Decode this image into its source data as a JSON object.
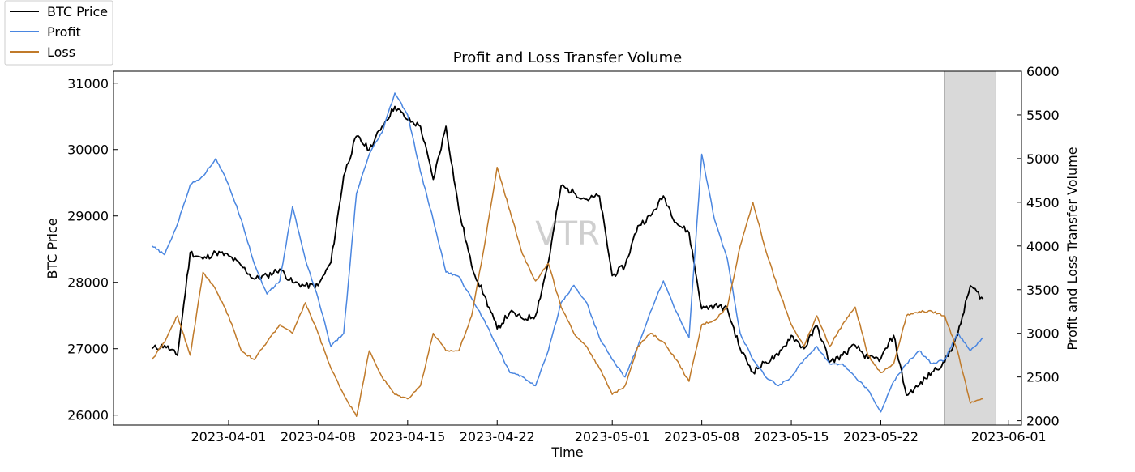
{
  "chart_data": {
    "type": "line",
    "title": "Profit and Loss Transfer Volume",
    "xlabel": "Time",
    "ylabel": "BTC Price",
    "y2label": "Profit and Loss Transfer Volume",
    "watermark": "VTR",
    "xlim": [
      "2023-03-23",
      "2023-06-02"
    ],
    "ylim": [
      25850,
      31180
    ],
    "y2lim": [
      1950,
      6000
    ],
    "x_ticks": [
      "2023-04-01",
      "2023-04-08",
      "2023-04-15",
      "2023-04-22",
      "2023-05-01",
      "2023-05-08",
      "2023-05-15",
      "2023-05-22",
      "2023-06-01"
    ],
    "y_ticks": [
      "26000",
      "27000",
      "28000",
      "29000",
      "30000",
      "31000"
    ],
    "y2_ticks": [
      "2000",
      "2500",
      "3000",
      "3500",
      "4000",
      "4500",
      "5000",
      "5500",
      "6000"
    ],
    "shaded_region": {
      "start": "2023-05-27",
      "end": "2023-05-31",
      "color": "#d9d9d9"
    },
    "legend_position": "top-left",
    "series": [
      {
        "name": "BTC Price",
        "axis": "left",
        "color": "#000000",
        "points": [
          [
            "2023-03-26",
            27000
          ],
          [
            "2023-03-27",
            27050
          ],
          [
            "2023-03-28",
            26900
          ],
          [
            "2023-03-29",
            28450
          ],
          [
            "2023-03-30",
            28350
          ],
          [
            "2023-03-31",
            28450
          ],
          [
            "2023-04-01",
            28400
          ],
          [
            "2023-04-02",
            28250
          ],
          [
            "2023-04-03",
            28050
          ],
          [
            "2023-04-04",
            28100
          ],
          [
            "2023-04-05",
            28200
          ],
          [
            "2023-04-06",
            28000
          ],
          [
            "2023-04-07",
            27950
          ],
          [
            "2023-04-08",
            27950
          ],
          [
            "2023-04-09",
            28300
          ],
          [
            "2023-04-10",
            29600
          ],
          [
            "2023-04-11",
            30200
          ],
          [
            "2023-04-12",
            30000
          ],
          [
            "2023-04-13",
            30350
          ],
          [
            "2023-04-14",
            30650
          ],
          [
            "2023-04-15",
            30450
          ],
          [
            "2023-04-16",
            30350
          ],
          [
            "2023-04-17",
            29550
          ],
          [
            "2023-04-18",
            30350
          ],
          [
            "2023-04-19",
            29100
          ],
          [
            "2023-04-20",
            28250
          ],
          [
            "2023-04-21",
            27800
          ],
          [
            "2023-04-22",
            27300
          ],
          [
            "2023-04-23",
            27550
          ],
          [
            "2023-04-24",
            27450
          ],
          [
            "2023-04-25",
            27500
          ],
          [
            "2023-04-26",
            28300
          ],
          [
            "2023-04-27",
            29450
          ],
          [
            "2023-04-28",
            29350
          ],
          [
            "2023-04-29",
            29250
          ],
          [
            "2023-04-30",
            29300
          ],
          [
            "2023-05-01",
            28100
          ],
          [
            "2023-05-02",
            28250
          ],
          [
            "2023-05-03",
            28850
          ],
          [
            "2023-05-04",
            29000
          ],
          [
            "2023-05-05",
            29300
          ],
          [
            "2023-05-06",
            28900
          ],
          [
            "2023-05-07",
            28750
          ],
          [
            "2023-05-08",
            27600
          ],
          [
            "2023-05-09",
            27650
          ],
          [
            "2023-05-10",
            27600
          ],
          [
            "2023-05-11",
            27000
          ],
          [
            "2023-05-12",
            26650
          ],
          [
            "2023-05-13",
            26800
          ],
          [
            "2023-05-14",
            26900
          ],
          [
            "2023-05-15",
            27200
          ],
          [
            "2023-05-16",
            27000
          ],
          [
            "2023-05-17",
            27350
          ],
          [
            "2023-05-18",
            26800
          ],
          [
            "2023-05-19",
            26900
          ],
          [
            "2023-05-20",
            27050
          ],
          [
            "2023-05-21",
            26850
          ],
          [
            "2023-05-22",
            26850
          ],
          [
            "2023-05-23",
            27200
          ],
          [
            "2023-05-24",
            26300
          ],
          [
            "2023-05-25",
            26450
          ],
          [
            "2023-05-26",
            26650
          ],
          [
            "2023-05-27",
            26800
          ],
          [
            "2023-05-28",
            27200
          ],
          [
            "2023-05-29",
            27950
          ],
          [
            "2023-05-30",
            27750
          ]
        ]
      },
      {
        "name": "Profit",
        "axis": "right",
        "color": "#4a86e0",
        "points": [
          [
            "2023-03-26",
            4000
          ],
          [
            "2023-03-27",
            3900
          ],
          [
            "2023-03-28",
            4250
          ],
          [
            "2023-03-29",
            4700
          ],
          [
            "2023-03-30",
            4800
          ],
          [
            "2023-03-31",
            5000
          ],
          [
            "2023-04-01",
            4700
          ],
          [
            "2023-04-02",
            4300
          ],
          [
            "2023-04-03",
            3800
          ],
          [
            "2023-04-04",
            3450
          ],
          [
            "2023-04-05",
            3600
          ],
          [
            "2023-04-06",
            4450
          ],
          [
            "2023-04-07",
            3850
          ],
          [
            "2023-04-08",
            3400
          ],
          [
            "2023-04-09",
            2850
          ],
          [
            "2023-04-10",
            3000
          ],
          [
            "2023-04-11",
            4600
          ],
          [
            "2023-04-12",
            5050
          ],
          [
            "2023-04-13",
            5300
          ],
          [
            "2023-04-14",
            5750
          ],
          [
            "2023-04-15",
            5500
          ],
          [
            "2023-04-16",
            4850
          ],
          [
            "2023-04-17",
            4300
          ],
          [
            "2023-04-18",
            3700
          ],
          [
            "2023-04-19",
            3650
          ],
          [
            "2023-04-20",
            3400
          ],
          [
            "2023-04-21",
            3150
          ],
          [
            "2023-04-22",
            2850
          ],
          [
            "2023-04-23",
            2550
          ],
          [
            "2023-04-24",
            2500
          ],
          [
            "2023-04-25",
            2400
          ],
          [
            "2023-04-26",
            2800
          ],
          [
            "2023-04-27",
            3350
          ],
          [
            "2023-04-28",
            3550
          ],
          [
            "2023-04-29",
            3350
          ],
          [
            "2023-04-30",
            2950
          ],
          [
            "2023-05-01",
            2700
          ],
          [
            "2023-05-02",
            2500
          ],
          [
            "2023-05-03",
            2850
          ],
          [
            "2023-05-04",
            3250
          ],
          [
            "2023-05-05",
            3600
          ],
          [
            "2023-05-06",
            3250
          ],
          [
            "2023-05-07",
            2950
          ],
          [
            "2023-05-08",
            5050
          ],
          [
            "2023-05-09",
            4300
          ],
          [
            "2023-05-10",
            3850
          ],
          [
            "2023-05-11",
            3000
          ],
          [
            "2023-05-12",
            2700
          ],
          [
            "2023-05-13",
            2500
          ],
          [
            "2023-05-14",
            2400
          ],
          [
            "2023-05-15",
            2500
          ],
          [
            "2023-05-16",
            2700
          ],
          [
            "2023-05-17",
            2850
          ],
          [
            "2023-05-18",
            2650
          ],
          [
            "2023-05-19",
            2650
          ],
          [
            "2023-05-20",
            2500
          ],
          [
            "2023-05-21",
            2350
          ],
          [
            "2023-05-22",
            2100
          ],
          [
            "2023-05-23",
            2450
          ],
          [
            "2023-05-24",
            2650
          ],
          [
            "2023-05-25",
            2800
          ],
          [
            "2023-05-26",
            2650
          ],
          [
            "2023-05-27",
            2700
          ],
          [
            "2023-05-28",
            3000
          ],
          [
            "2023-05-29",
            2800
          ],
          [
            "2023-05-30",
            2950
          ]
        ]
      },
      {
        "name": "Loss",
        "axis": "right",
        "color": "#c07a2a",
        "points": [
          [
            "2023-03-26",
            2700
          ],
          [
            "2023-03-27",
            2900
          ],
          [
            "2023-03-28",
            3200
          ],
          [
            "2023-03-29",
            2750
          ],
          [
            "2023-03-30",
            3700
          ],
          [
            "2023-03-31",
            3500
          ],
          [
            "2023-04-01",
            3200
          ],
          [
            "2023-04-02",
            2800
          ],
          [
            "2023-04-03",
            2700
          ],
          [
            "2023-04-04",
            2900
          ],
          [
            "2023-04-05",
            3100
          ],
          [
            "2023-04-06",
            3000
          ],
          [
            "2023-04-07",
            3350
          ],
          [
            "2023-04-08",
            3000
          ],
          [
            "2023-04-09",
            2600
          ],
          [
            "2023-04-10",
            2300
          ],
          [
            "2023-04-11",
            2050
          ],
          [
            "2023-04-12",
            2800
          ],
          [
            "2023-04-13",
            2500
          ],
          [
            "2023-04-14",
            2300
          ],
          [
            "2023-04-15",
            2250
          ],
          [
            "2023-04-16",
            2400
          ],
          [
            "2023-04-17",
            3000
          ],
          [
            "2023-04-18",
            2800
          ],
          [
            "2023-04-19",
            2800
          ],
          [
            "2023-04-20",
            3200
          ],
          [
            "2023-04-21",
            4000
          ],
          [
            "2023-04-22",
            4900
          ],
          [
            "2023-04-23",
            4400
          ],
          [
            "2023-04-24",
            3900
          ],
          [
            "2023-04-25",
            3600
          ],
          [
            "2023-04-26",
            3800
          ],
          [
            "2023-04-27",
            3300
          ],
          [
            "2023-04-28",
            3000
          ],
          [
            "2023-04-29",
            2850
          ],
          [
            "2023-04-30",
            2600
          ],
          [
            "2023-05-01",
            2300
          ],
          [
            "2023-05-02",
            2400
          ],
          [
            "2023-05-03",
            2850
          ],
          [
            "2023-05-04",
            3000
          ],
          [
            "2023-05-05",
            2900
          ],
          [
            "2023-05-06",
            2700
          ],
          [
            "2023-05-07",
            2450
          ],
          [
            "2023-05-08",
            3100
          ],
          [
            "2023-05-09",
            3150
          ],
          [
            "2023-05-10",
            3300
          ],
          [
            "2023-05-11",
            4000
          ],
          [
            "2023-05-12",
            4500
          ],
          [
            "2023-05-13",
            3950
          ],
          [
            "2023-05-14",
            3500
          ],
          [
            "2023-05-15",
            3100
          ],
          [
            "2023-05-16",
            2850
          ],
          [
            "2023-05-17",
            3200
          ],
          [
            "2023-05-18",
            2850
          ],
          [
            "2023-05-19",
            3100
          ],
          [
            "2023-05-20",
            3300
          ],
          [
            "2023-05-21",
            2750
          ],
          [
            "2023-05-22",
            2550
          ],
          [
            "2023-05-23",
            2650
          ],
          [
            "2023-05-24",
            3200
          ],
          [
            "2023-05-25",
            3250
          ],
          [
            "2023-05-26",
            3250
          ],
          [
            "2023-05-27",
            3200
          ],
          [
            "2023-05-28",
            2800
          ],
          [
            "2023-05-29",
            2200
          ],
          [
            "2023-05-30",
            2250
          ]
        ]
      }
    ]
  }
}
